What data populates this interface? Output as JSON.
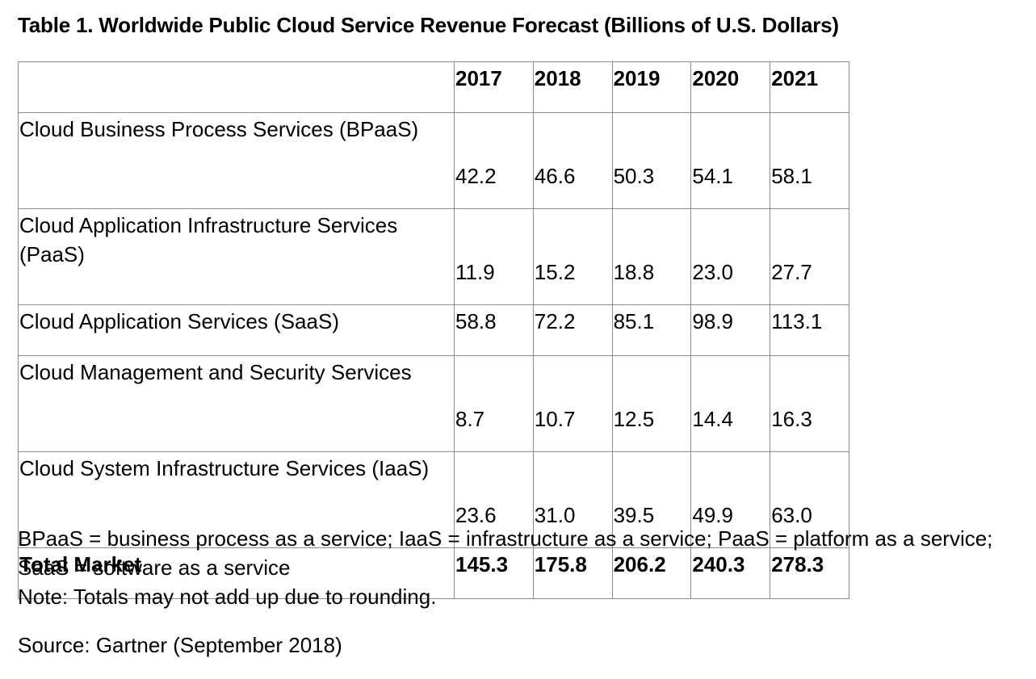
{
  "title": "Table 1. Worldwide Public Cloud Service Revenue Forecast (Billions of U.S. Dollars)",
  "chart_data": {
    "type": "table",
    "columns": [
      "",
      "2017",
      "2018",
      "2019",
      "2020",
      "2021"
    ],
    "rows": [
      {
        "label": "Cloud Business Process Services (BPaaS)",
        "values": [
          "42.2",
          "46.6",
          "50.3",
          "54.1",
          "58.1"
        ]
      },
      {
        "label": "Cloud Application Infrastructure Services (PaaS)",
        "values": [
          "11.9",
          "15.2",
          "18.8",
          "23.0",
          "27.7"
        ]
      },
      {
        "label": "Cloud Application Services (SaaS)",
        "values": [
          "58.8",
          "72.2",
          "85.1",
          "98.9",
          "113.1"
        ]
      },
      {
        "label": "Cloud Management and Security Services",
        "values": [
          "8.7",
          "10.7",
          "12.5",
          "14.4",
          "16.3"
        ]
      },
      {
        "label": "Cloud System Infrastructure Services (IaaS)",
        "values": [
          "23.6",
          "31.0",
          "39.5",
          "49.9",
          "63.0"
        ]
      }
    ],
    "total": {
      "label": "Total Market",
      "values": [
        "145.3",
        "175.8",
        "206.2",
        "240.3",
        "278.3"
      ]
    }
  },
  "notes": {
    "abbreviations": "BPaaS = business process as a service; IaaS = infrastructure as a service; PaaS = platform as a service; SaaS = software as a service",
    "rounding": "Note: Totals may not add up due to rounding."
  },
  "source": "Source: Gartner (September 2018)"
}
